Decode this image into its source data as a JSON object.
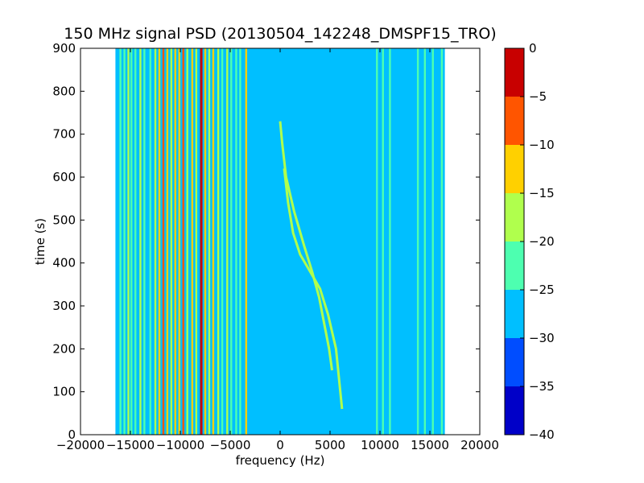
{
  "chart_data": {
    "type": "heatmap",
    "title": "150 MHz signal PSD (20130504_142248_DMSPF15_TRO)",
    "xlabel": "frequency (Hz)",
    "ylabel": "time (s)",
    "xlim": [
      -20000,
      20000
    ],
    "ylim": [
      0,
      900
    ],
    "x_ticks": [
      -20000,
      -15000,
      -10000,
      -5000,
      0,
      5000,
      10000,
      15000,
      20000
    ],
    "x_tick_labels": [
      "−20000",
      "−15000",
      "−10000",
      "−5000",
      "0",
      "5000",
      "10000",
      "15000",
      "20000"
    ],
    "y_ticks": [
      0,
      100,
      200,
      300,
      400,
      500,
      600,
      700,
      800,
      900
    ],
    "y_tick_labels": [
      "0",
      "100",
      "200",
      "300",
      "400",
      "500",
      "600",
      "700",
      "800",
      "900"
    ],
    "data_extent_x": [
      -16500,
      16500
    ],
    "background_level": -27.5,
    "colorbar": {
      "ticks": [
        0,
        -5,
        -10,
        -15,
        -20,
        -25,
        -30,
        -35,
        -40
      ],
      "tick_labels": [
        "0",
        "−5",
        "−10",
        "−15",
        "−20",
        "−25",
        "−30",
        "−35",
        "−40"
      ],
      "levels": [
        {
          "range": [
            -40,
            -35
          ],
          "color": "#0000c8"
        },
        {
          "range": [
            -35,
            -30
          ],
          "color": "#004dff"
        },
        {
          "range": [
            -30,
            -25
          ],
          "color": "#00bfff"
        },
        {
          "range": [
            -25,
            -20
          ],
          "color": "#4dffb0"
        },
        {
          "range": [
            -20,
            -15
          ],
          "color": "#b0ff4d"
        },
        {
          "range": [
            -15,
            -10
          ],
          "color": "#ffd000"
        },
        {
          "range": [
            -10,
            -5
          ],
          "color": "#ff5500"
        },
        {
          "range": [
            -5,
            0
          ],
          "color": "#c80000"
        }
      ]
    },
    "vertical_lines": [
      {
        "freq": -16000,
        "level": -22.5
      },
      {
        "freq": -15600,
        "level": -22.5
      },
      {
        "freq": -15200,
        "level": -17.5
      },
      {
        "freq": -14900,
        "level": -22.5
      },
      {
        "freq": -14500,
        "level": -22.5
      },
      {
        "freq": -14000,
        "level": -17.5
      },
      {
        "freq": -13600,
        "level": -22.5
      },
      {
        "freq": -13000,
        "level": -22.5
      },
      {
        "freq": -12500,
        "level": -17.5
      },
      {
        "freq": -12100,
        "level": -12.5
      },
      {
        "freq": -11700,
        "level": -7.5
      },
      {
        "freq": -11300,
        "level": -12.5
      },
      {
        "freq": -10900,
        "level": -17.5
      },
      {
        "freq": -10500,
        "level": -12.5
      },
      {
        "freq": -10100,
        "level": -12.5
      },
      {
        "freq": -9700,
        "level": -7.5
      },
      {
        "freq": -9300,
        "level": -17.5
      },
      {
        "freq": -8800,
        "level": -12.5
      },
      {
        "freq": -8400,
        "level": -17.5
      },
      {
        "freq": -7900,
        "level": -2.5
      },
      {
        "freq": -7500,
        "level": -12.5
      },
      {
        "freq": -7100,
        "level": -17.5
      },
      {
        "freq": -6700,
        "level": -12.5
      },
      {
        "freq": -6200,
        "level": -17.5
      },
      {
        "freq": -5800,
        "level": -22.5
      },
      {
        "freq": -5300,
        "level": -17.5
      },
      {
        "freq": -4900,
        "level": -22.5
      },
      {
        "freq": -4400,
        "level": -22.5
      },
      {
        "freq": -4000,
        "level": -22.5
      },
      {
        "freq": -3400,
        "level": -12.5
      },
      {
        "freq": 9700,
        "level": -22.5
      },
      {
        "freq": 10300,
        "level": -22.5
      },
      {
        "freq": 11000,
        "level": -22.5
      },
      {
        "freq": 13800,
        "level": -22.5
      },
      {
        "freq": 14500,
        "level": -22.5
      },
      {
        "freq": 15300,
        "level": -22.5
      },
      {
        "freq": 16200,
        "level": -22.5
      }
    ],
    "curves": [
      {
        "name": "",
        "level": -17.5,
        "points": [
          [
            0,
            730
          ],
          [
            200,
            680
          ],
          [
            600,
            600
          ],
          [
            1400,
            520
          ],
          [
            2400,
            440
          ],
          [
            3200,
            380
          ],
          [
            3900,
            320
          ],
          [
            4400,
            260
          ],
          [
            4900,
            200
          ],
          [
            5200,
            150
          ]
        ]
      },
      {
        "name": "",
        "level": -17.5,
        "points": [
          [
            400,
            620
          ],
          [
            800,
            540
          ],
          [
            1300,
            470
          ],
          [
            2000,
            420
          ],
          [
            3000,
            380
          ],
          [
            4000,
            340
          ],
          [
            4800,
            280
          ],
          [
            5600,
            200
          ],
          [
            6200,
            60
          ]
        ]
      }
    ]
  }
}
